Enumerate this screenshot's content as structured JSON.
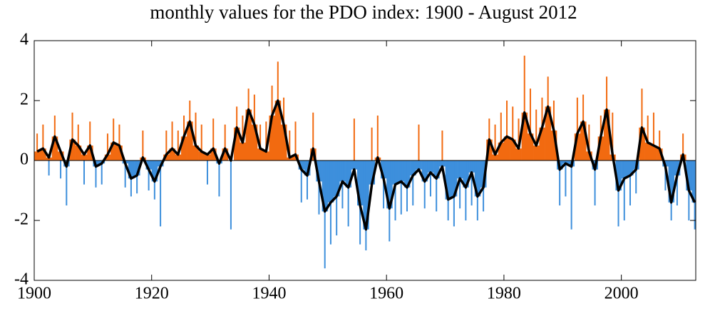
{
  "chart_data": {
    "type": "bar",
    "title": "monthly values for the PDO index: 1900 - August 2012",
    "x": [
      1900,
      1901,
      1902,
      1903,
      1904,
      1905,
      1906,
      1907,
      1908,
      1909,
      1910,
      1911,
      1912,
      1913,
      1914,
      1915,
      1916,
      1917,
      1918,
      1919,
      1920,
      1921,
      1922,
      1923,
      1924,
      1925,
      1926,
      1927,
      1928,
      1929,
      1930,
      1931,
      1932,
      1933,
      1934,
      1935,
      1936,
      1937,
      1938,
      1939,
      1940,
      1941,
      1942,
      1943,
      1944,
      1945,
      1946,
      1947,
      1948,
      1949,
      1950,
      1951,
      1952,
      1953,
      1954,
      1955,
      1956,
      1957,
      1958,
      1959,
      1960,
      1961,
      1962,
      1963,
      1964,
      1965,
      1966,
      1967,
      1968,
      1969,
      1970,
      1971,
      1972,
      1973,
      1974,
      1975,
      1976,
      1977,
      1978,
      1979,
      1980,
      1981,
      1982,
      1983,
      1984,
      1985,
      1986,
      1987,
      1988,
      1989,
      1990,
      1991,
      1992,
      1993,
      1994,
      1995,
      1996,
      1997,
      1998,
      1999,
      2000,
      2001,
      2002,
      2003,
      2004,
      2005,
      2006,
      2007,
      2008,
      2009,
      2010,
      2011,
      2012
    ],
    "series": [
      {
        "values": [
          0.9,
          1.2,
          -0.5,
          1.5,
          -0.6,
          -1.5,
          1.6,
          1.2,
          -0.8,
          1.3,
          -0.9,
          -0.8,
          0.9,
          1.4,
          1.2,
          -0.9,
          -1.2,
          -1.1,
          1.0,
          -1.0,
          -1.3,
          -2.2,
          1.0,
          1.3,
          1.0,
          1.5,
          2.0,
          1.6,
          1.2,
          -0.8,
          1.4,
          -1.2,
          1.2,
          -2.3,
          1.8,
          1.5,
          2.4,
          2.2,
          1.2,
          1.3,
          2.5,
          3.3,
          2.1,
          1.0,
          1.3,
          -1.4,
          -1.3,
          1.6,
          -1.8,
          -3.6,
          -2.8,
          -2.5,
          -1.6,
          -2.2,
          1.4,
          -2.8,
          -3.0,
          1.1,
          1.5,
          -1.6,
          -2.7,
          -2.0,
          -1.8,
          -1.7,
          -1.5,
          1.2,
          -1.6,
          -1.2,
          -1.7,
          1.0,
          -2.0,
          -2.2,
          -1.6,
          -2.0,
          -1.5,
          -2.0,
          -1.7,
          1.4,
          1.2,
          1.6,
          2.0,
          1.8,
          1.4,
          3.5,
          2.4,
          1.7,
          2.1,
          2.8,
          2.0,
          -1.5,
          -1.2,
          -2.3,
          2.1,
          2.2,
          1.2,
          -1.5,
          1.5,
          2.8,
          1.6,
          -2.2,
          -2.0,
          -1.5,
          -1.1,
          2.4,
          1.5,
          1.6,
          1.0,
          -1.0,
          -2.0,
          -1.5,
          0.9,
          -2.0,
          -2.3
        ]
      },
      {
        "values": [
          0.3,
          0.4,
          0.1,
          0.8,
          0.3,
          -0.2,
          0.7,
          0.5,
          0.2,
          0.5,
          -0.2,
          -0.1,
          0.2,
          0.6,
          0.5,
          -0.1,
          -0.6,
          -0.5,
          0.1,
          -0.3,
          -0.7,
          -0.2,
          0.2,
          0.4,
          0.2,
          0.8,
          1.3,
          0.5,
          0.3,
          0.2,
          0.4,
          -0.1,
          0.4,
          0.0,
          1.1,
          0.6,
          1.7,
          1.2,
          0.4,
          0.3,
          1.5,
          2.0,
          1.2,
          0.1,
          0.2,
          -0.3,
          -0.5,
          0.4,
          -0.7,
          -1.7,
          -1.4,
          -1.2,
          -0.7,
          -0.9,
          -0.3,
          -1.5,
          -2.3,
          -0.8,
          0.1,
          -0.6,
          -1.6,
          -0.8,
          -0.7,
          -0.9,
          -0.5,
          -0.3,
          -0.7,
          -0.4,
          -0.6,
          -0.2,
          -1.3,
          -1.2,
          -0.6,
          -0.9,
          -0.4,
          -1.2,
          -0.9,
          0.7,
          0.2,
          0.6,
          0.8,
          0.7,
          0.4,
          1.6,
          0.9,
          0.5,
          1.1,
          1.8,
          1.0,
          -0.3,
          -0.1,
          -0.2,
          0.9,
          1.3,
          0.3,
          -0.3,
          0.8,
          1.7,
          0.2,
          -1.0,
          -0.6,
          -0.5,
          -0.3,
          1.1,
          0.6,
          0.5,
          0.4,
          -0.2,
          -1.4,
          -0.5,
          0.2,
          -1.0,
          -1.4
        ]
      }
    ],
    "pos_color": "#f26a10",
    "neg_color": "#3d8fdc",
    "line_color": "#000000",
    "xlim": [
      1900,
      2012.67
    ],
    "xticks": [
      1900,
      1920,
      1940,
      1960,
      1980,
      2000
    ],
    "ylim": [
      -4,
      4
    ],
    "yticks": [
      -4,
      -2,
      0,
      2,
      4
    ]
  }
}
